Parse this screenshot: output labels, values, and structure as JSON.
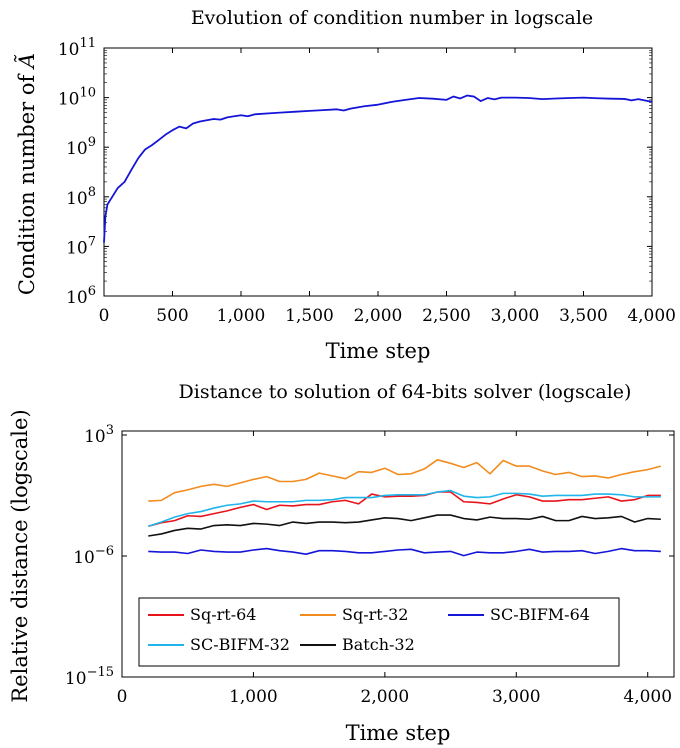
{
  "charts": [
    {
      "type": "line",
      "title": "Evolution of condition number  in logscale",
      "xlabel": "Time step",
      "ylabel_prefix": "Condition number of ",
      "ylabel_symbol": "Ã",
      "yscale": "log",
      "xlim": [
        0,
        4000
      ],
      "ylim_exp": [
        6,
        11
      ],
      "xticks": [
        0,
        500,
        1000,
        1500,
        2000,
        2500,
        3000,
        3500,
        4000
      ],
      "xtick_labels": [
        "0",
        "500",
        "1,000",
        "1,500",
        "2,000",
        "2,500",
        "3,000",
        "3,500",
        "4,000"
      ],
      "yticks_exp": [
        6,
        7,
        8,
        9,
        10,
        11
      ],
      "ytick_labels": [
        "6",
        "7",
        "8",
        "9",
        "10",
        "11"
      ],
      "ytick_base": "10",
      "grid": false,
      "series": [
        {
          "color": "#1515d8",
          "x": [
            0,
            10,
            25,
            50,
            100,
            150,
            200,
            250,
            300,
            350,
            400,
            450,
            500,
            550,
            600,
            650,
            700,
            750,
            800,
            850,
            900,
            950,
            1000,
            1050,
            1100,
            1200,
            1300,
            1400,
            1500,
            1600,
            1700,
            1750,
            1800,
            1900,
            2000,
            2100,
            2200,
            2300,
            2400,
            2500,
            2550,
            2600,
            2650,
            2700,
            2750,
            2800,
            2850,
            2900,
            3000,
            3100,
            3200,
            3300,
            3400,
            3500,
            3600,
            3700,
            3800,
            3850,
            3900,
            4000
          ],
          "y": [
            12000000.0,
            40000000.0,
            70000000.0,
            90000000.0,
            150000000.0,
            200000000.0,
            350000000.0,
            600000000.0,
            900000000.0,
            1100000000.0,
            1400000000.0,
            1800000000.0,
            2200000000.0,
            2600000000.0,
            2400000000.0,
            3000000000.0,
            3300000000.0,
            3500000000.0,
            3700000000.0,
            3600000000.0,
            4000000000.0,
            4200000000.0,
            4400000000.0,
            4200000000.0,
            4600000000.0,
            4800000000.0,
            5000000000.0,
            5200000000.0,
            5400000000.0,
            5600000000.0,
            5800000000.0,
            5500000000.0,
            6000000000.0,
            6700000000.0,
            7200000000.0,
            8200000000.0,
            9000000000.0,
            9800000000.0,
            9500000000.0,
            9000000000.0,
            10500000000.0,
            9600000000.0,
            11000000000.0,
            10500000000.0,
            8500000000.0,
            9800000000.0,
            9200000000.0,
            10000000000.0,
            10000000000.0,
            9800000000.0,
            9300000000.0,
            9600000000.0,
            9800000000.0,
            10000000000.0,
            9700000000.0,
            9500000000.0,
            9400000000.0,
            8800000000.0,
            9300000000.0,
            8200000000.0
          ]
        }
      ]
    },
    {
      "type": "line",
      "title": "Distance to solution of 64-bits solver (logscale)",
      "xlabel": "Time step",
      "ylabel": "Relative distance (logscale)",
      "yscale": "log",
      "xlim": [
        0,
        4200
      ],
      "ylim_exp": [
        -15,
        4
      ],
      "xticks": [
        0,
        1000,
        2000,
        3000,
        4000
      ],
      "xtick_labels": [
        "0",
        "1,000",
        "2,000",
        "3,000",
        "4,000"
      ],
      "yticks_exp": [
        -15,
        -6,
        3
      ],
      "ytick_labels": [
        "−15",
        "−6",
        "3"
      ],
      "ytick_base": "10",
      "grid": false,
      "legend": "bottom-left",
      "x": [
        200,
        300,
        400,
        500,
        600,
        700,
        800,
        900,
        1000,
        1100,
        1200,
        1300,
        1400,
        1500,
        1600,
        1700,
        1800,
        1900,
        2000,
        2100,
        2200,
        2300,
        2400,
        2500,
        2600,
        2700,
        2800,
        2900,
        3000,
        3100,
        3200,
        3300,
        3400,
        3500,
        3600,
        3700,
        3800,
        3900,
        4000,
        4100
      ],
      "series": [
        {
          "name": "Sq-rt-64",
          "color": "#e8141c",
          "y_exp": [
            -4.2,
            -3.7,
            -3.4,
            -2.7,
            -2.8,
            -2.4,
            -2.0,
            -1.5,
            -1.1,
            -1.8,
            -1.2,
            -1.3,
            -1.1,
            -1.1,
            -0.7,
            -0.5,
            -1.0,
            0.4,
            0.0,
            0.1,
            0.1,
            0.2,
            0.7,
            0.7,
            -0.7,
            -0.8,
            -1.0,
            -0.3,
            0.3,
            0.0,
            -0.6,
            -0.6,
            -0.4,
            -0.4,
            -0.2,
            0.0,
            -0.6,
            -0.4,
            0.2,
            0.2
          ]
        },
        {
          "name": "Sq-rt-32",
          "color": "#f28c1e",
          "y_exp": [
            -0.6,
            -0.5,
            0.6,
            1.0,
            1.5,
            1.8,
            1.5,
            2.0,
            2.5,
            2.9,
            2.2,
            2.2,
            2.5,
            3.4,
            3.0,
            2.6,
            3.6,
            3.5,
            4.1,
            3.2,
            3.3,
            4.0,
            5.3,
            4.8,
            4.2,
            4.9,
            3.3,
            5.2,
            4.4,
            4.4,
            3.7,
            3.2,
            3.5,
            2.9,
            3.0,
            2.7,
            3.2,
            3.6,
            3.9,
            4.4
          ]
        },
        {
          "name": "SC-BIFM-64",
          "color": "#1515d8",
          "y_exp": [
            -7.8,
            -7.9,
            -7.9,
            -8.1,
            -7.6,
            -7.8,
            -7.9,
            -7.9,
            -7.6,
            -7.4,
            -7.7,
            -7.9,
            -8.2,
            -7.7,
            -7.7,
            -7.8,
            -8.0,
            -8.0,
            -7.8,
            -7.6,
            -7.5,
            -8.0,
            -7.9,
            -7.8,
            -8.4,
            -7.9,
            -8.0,
            -8.0,
            -7.8,
            -7.5,
            -7.9,
            -7.8,
            -7.8,
            -7.7,
            -8.1,
            -7.8,
            -7.4,
            -7.7,
            -7.7,
            -7.8
          ]
        },
        {
          "name": "SC-BIFM-32",
          "color": "#1fb5ea",
          "y_exp": [
            -4.2,
            -3.6,
            -2.9,
            -2.4,
            -2.1,
            -1.6,
            -1.2,
            -1.0,
            -0.6,
            -0.7,
            -0.7,
            -0.7,
            -0.5,
            -0.5,
            -0.4,
            -0.1,
            -0.1,
            -0.1,
            0.2,
            0.3,
            0.3,
            0.3,
            0.7,
            0.9,
            0.1,
            -0.1,
            0.0,
            0.5,
            0.5,
            0.4,
            0.1,
            0.2,
            0.2,
            0.2,
            0.4,
            0.4,
            0.3,
            0.0,
            0.0,
            0.0
          ]
        },
        {
          "name": "Batch-32",
          "color": "#111111",
          "y_exp": [
            -5.6,
            -5.3,
            -4.8,
            -4.5,
            -4.6,
            -4.1,
            -4.0,
            -4.1,
            -3.8,
            -3.9,
            -4.1,
            -3.6,
            -3.8,
            -3.6,
            -3.6,
            -3.7,
            -3.6,
            -3.3,
            -3.0,
            -3.1,
            -3.4,
            -3.0,
            -2.6,
            -2.6,
            -3.1,
            -3.3,
            -2.9,
            -3.1,
            -3.1,
            -3.2,
            -2.8,
            -3.4,
            -3.4,
            -2.8,
            -3.1,
            -3.0,
            -2.8,
            -3.6,
            -3.1,
            -3.2
          ]
        }
      ]
    }
  ]
}
